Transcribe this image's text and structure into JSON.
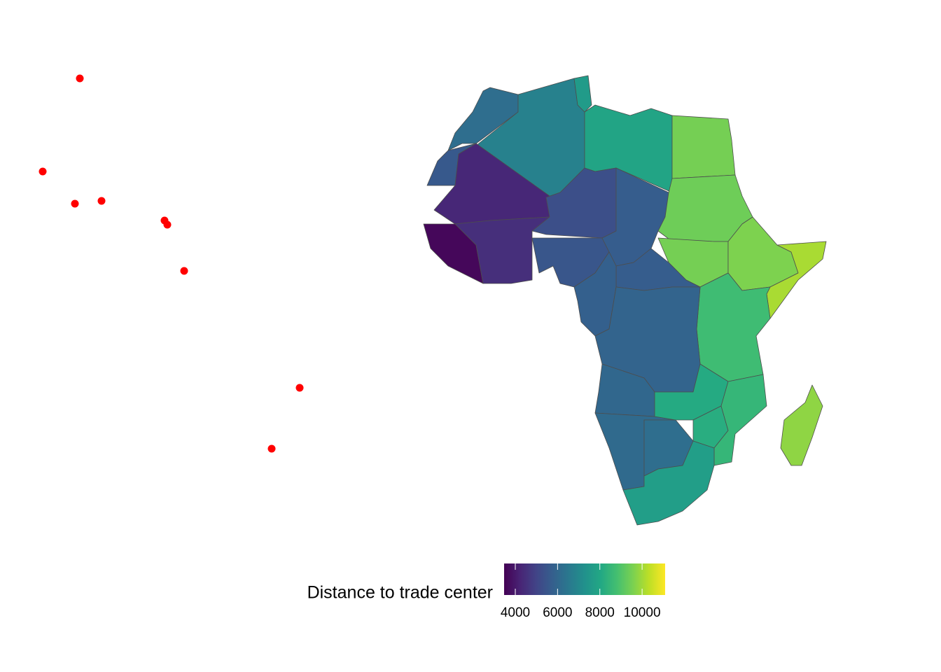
{
  "chart_data": {
    "type": "choropleth",
    "legend_title": "Distance to trade center",
    "values": [
      6200,
      6800,
      7600,
      7900,
      9500,
      5600,
      4300,
      3600,
      4500,
      5300,
      5500,
      5700,
      9400,
      9500,
      9600,
      10100,
      8700,
      5700,
      5800,
      5900,
      6000,
      6100,
      6200,
      8100,
      8200,
      8500,
      7700,
      9800
    ],
    "colorbar": {
      "lim": [
        3470,
        11090
      ],
      "ticks": [
        4000,
        6000,
        8000,
        10000
      ]
    },
    "point_color": "#ff0000",
    "border_color": "#4d4d4d"
  }
}
